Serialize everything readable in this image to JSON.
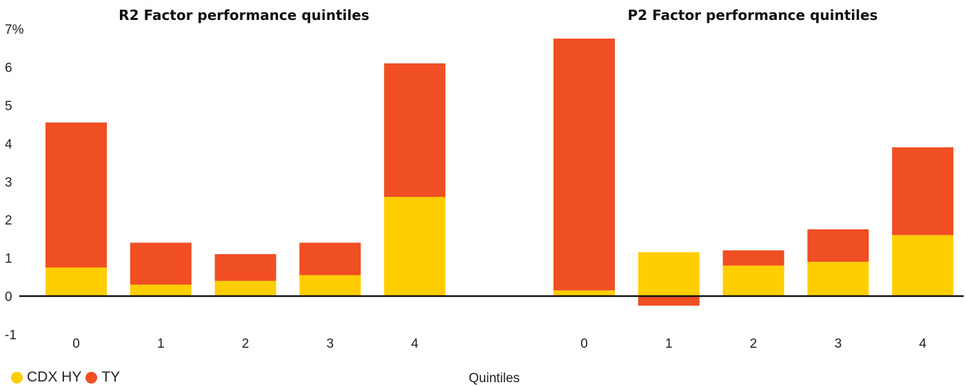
{
  "chart_data": [
    {
      "type": "bar",
      "stacked": true,
      "title": "R2 Factor performance quintiles",
      "categories": [
        "0",
        "1",
        "2",
        "3",
        "4"
      ],
      "series": [
        {
          "name": "CDX HY",
          "color": "#FFCE00",
          "values": [
            0.75,
            0.3,
            0.4,
            0.55,
            2.6
          ]
        },
        {
          "name": "TY",
          "color": "#F04E23",
          "values": [
            3.8,
            1.1,
            0.7,
            0.85,
            3.5
          ]
        }
      ],
      "y_ticks": [
        "7%",
        "6",
        "5",
        "4",
        "3",
        "2",
        "1",
        "0",
        "-1"
      ],
      "ylim": [
        -1,
        7
      ],
      "grid": false
    },
    {
      "type": "bar",
      "stacked": true,
      "title": "P2 Factor performance quintiles",
      "categories": [
        "0",
        "1",
        "2",
        "3",
        "4"
      ],
      "series": [
        {
          "name": "CDX HY",
          "color": "#FFCE00",
          "values": [
            0.15,
            1.15,
            0.8,
            0.9,
            1.6
          ]
        },
        {
          "name": "TY",
          "color": "#F04E23",
          "values": [
            6.6,
            -0.25,
            0.4,
            0.85,
            2.3
          ]
        }
      ],
      "ylim": [
        -1,
        7
      ],
      "grid": false
    }
  ],
  "xlabel": "Quintiles",
  "legend": {
    "placement": "bottom-left",
    "items": [
      {
        "label": "CDX HY",
        "color": "#FFCE00"
      },
      {
        "label": "TY",
        "color": "#F04E23"
      }
    ]
  }
}
